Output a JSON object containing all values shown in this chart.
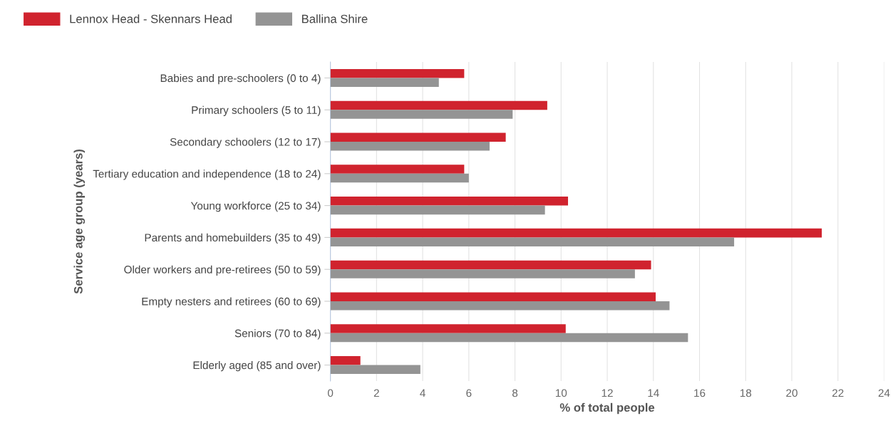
{
  "chart_data": {
    "type": "bar",
    "orientation": "horizontal",
    "xlabel": "% of total people",
    "ylabel": "Service age group (years)",
    "categories": [
      "Babies and pre-schoolers (0 to 4)",
      "Primary schoolers (5 to 11)",
      "Secondary schoolers (12 to 17)",
      "Tertiary education and independence (18 to 24)",
      "Young workforce (25 to 34)",
      "Parents and homebuilders (35 to 49)",
      "Older workers and pre-retirees (50 to 59)",
      "Empty nesters and retirees (60 to 69)",
      "Seniors (70 to 84)",
      "Elderly aged (85 and over)"
    ],
    "series": [
      {
        "name": "Lennox Head - Skennars Head",
        "color": "#d0232e",
        "values": [
          5.8,
          9.4,
          7.6,
          5.8,
          10.3,
          21.3,
          13.9,
          14.1,
          10.2,
          1.3
        ]
      },
      {
        "name": "Ballina Shire",
        "color": "#949494",
        "values": [
          4.7,
          7.9,
          6.9,
          6.0,
          9.3,
          17.5,
          13.2,
          14.7,
          15.5,
          3.9
        ]
      }
    ],
    "xlim": [
      0,
      24
    ],
    "xticks": [
      0,
      2,
      4,
      6,
      8,
      10,
      12,
      14,
      16,
      18,
      20,
      22,
      24
    ],
    "grid": "x",
    "legend": "top left"
  }
}
